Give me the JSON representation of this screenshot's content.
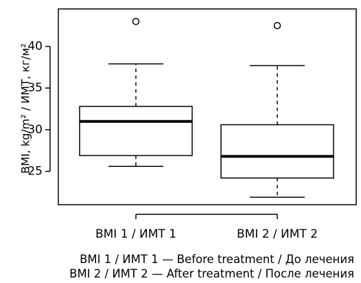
{
  "chart_data": {
    "type": "boxplot",
    "ylabel": "BMI, kg/m² / ИМТ, кг/м²",
    "categories": [
      "BMI 1 / ИМТ 1",
      "BMI 2 / ИМТ 2"
    ],
    "ylim": [
      21,
      44.5
    ],
    "yticks": [
      25,
      30,
      35,
      40
    ],
    "grid": false,
    "boxes": [
      {
        "category": "BMI 1 / ИМТ 1",
        "whisker_low": 25.6,
        "q1": 26.9,
        "median": 31.0,
        "q3": 32.8,
        "whisker_high": 37.9,
        "outliers": [
          43.0
        ]
      },
      {
        "category": "BMI 2 / ИМТ 2",
        "whisker_low": 21.9,
        "q1": 24.2,
        "median": 26.8,
        "q3": 30.6,
        "whisker_high": 37.7,
        "outliers": [
          42.5
        ]
      }
    ]
  },
  "legend_notes": [
    {
      "key": "BMI 1 / ИМТ 1",
      "dash": "—",
      "text": "Before treatment / До лечения"
    },
    {
      "key": "BMI 2 / ИМТ 2",
      "dash": "—",
      "text": "After treatment / После лечения"
    }
  ]
}
